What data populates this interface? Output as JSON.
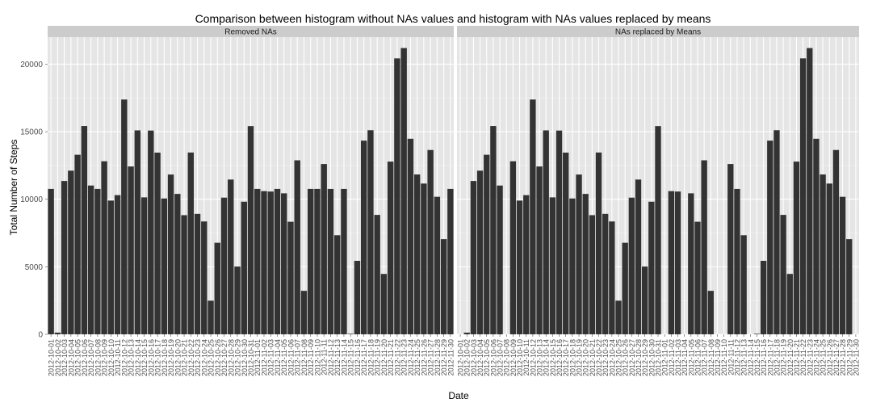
{
  "chart_data": {
    "type": "bar",
    "title": "Comparison between histogram without NAs values and histogram with NAs values replaced by means",
    "xlabel": "Date",
    "ylabel": "Total Number of Steps",
    "ylim": [
      0,
      22000
    ],
    "yticks": [
      0,
      5000,
      10000,
      15000,
      20000
    ],
    "grid": true,
    "categories": [
      "2012-10-01",
      "2012-10-02",
      "2012-10-03",
      "2012-10-04",
      "2012-10-05",
      "2012-10-06",
      "2012-10-07",
      "2012-10-08",
      "2012-10-09",
      "2012-10-10",
      "2012-10-11",
      "2012-10-12",
      "2012-10-13",
      "2012-10-14",
      "2012-10-15",
      "2012-10-16",
      "2012-10-17",
      "2012-10-18",
      "2012-10-19",
      "2012-10-20",
      "2012-10-21",
      "2012-10-22",
      "2012-10-23",
      "2012-10-24",
      "2012-10-25",
      "2012-10-26",
      "2012-10-27",
      "2012-10-28",
      "2012-10-29",
      "2012-10-30",
      "2012-10-31",
      "2012-11-01",
      "2012-11-02",
      "2012-11-03",
      "2012-11-04",
      "2012-11-05",
      "2012-11-06",
      "2012-11-07",
      "2012-11-08",
      "2012-11-09",
      "2012-11-10",
      "2012-11-11",
      "2012-11-12",
      "2012-11-13",
      "2012-11-14",
      "2012-11-15",
      "2012-11-16",
      "2012-11-17",
      "2012-11-18",
      "2012-11-19",
      "2012-11-20",
      "2012-11-21",
      "2012-11-22",
      "2012-11-23",
      "2012-11-24",
      "2012-11-25",
      "2012-11-26",
      "2012-11-27",
      "2012-11-28",
      "2012-11-29",
      "2012-11-30"
    ],
    "panels": [
      {
        "name": "Removed NAs",
        "values": [
          10766,
          126,
          11352,
          12116,
          13294,
          15420,
          11015,
          10766,
          12811,
          9900,
          10304,
          17382,
          12426,
          15098,
          10139,
          15084,
          13452,
          10056,
          11829,
          10395,
          8821,
          13460,
          8918,
          8355,
          2492,
          6778,
          10119,
          11458,
          5018,
          9819,
          15414,
          10766,
          10600,
          10571,
          10766,
          10439,
          8334,
          12883,
          3219,
          10766,
          10766,
          12608,
          10765,
          7336,
          10766,
          41,
          5441,
          14339,
          15110,
          8841,
          4472,
          12787,
          20427,
          21194,
          14478,
          11834,
          11162,
          13646,
          10183,
          7047,
          10766
        ]
      },
      {
        "name": "NAs replaced by Means",
        "values": [
          0,
          126,
          11352,
          12116,
          13294,
          15420,
          11015,
          0,
          12811,
          9900,
          10304,
          17382,
          12426,
          15098,
          10139,
          15084,
          13452,
          10056,
          11829,
          10395,
          8821,
          13460,
          8918,
          8355,
          2492,
          6778,
          10119,
          11458,
          5018,
          9819,
          15414,
          0,
          10600,
          10571,
          0,
          10439,
          8334,
          12883,
          3219,
          0,
          0,
          12608,
          10765,
          7336,
          0,
          41,
          5441,
          14339,
          15110,
          8841,
          4472,
          12787,
          20427,
          21194,
          14478,
          11834,
          11162,
          13646,
          10183,
          7047,
          0
        ]
      }
    ]
  },
  "colors": {
    "bar": "#333333",
    "panel_background": "#e5e5e5",
    "grid_major": "#ffffff",
    "grid_minor": "#f2f2f2",
    "strip_background": "#cccccc"
  }
}
